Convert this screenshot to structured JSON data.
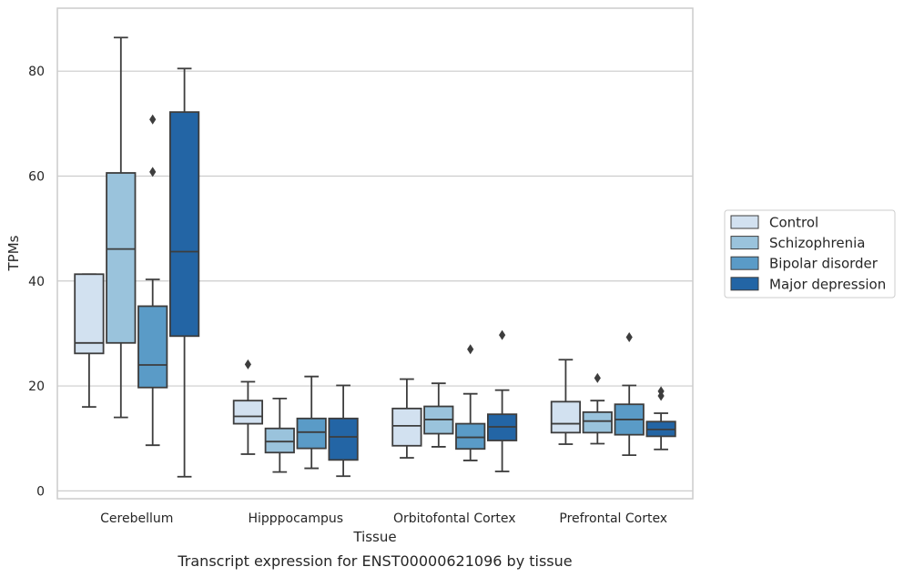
{
  "chart_data": {
    "type": "box",
    "title": "",
    "caption": "Transcript expression for ENST00000621096 by tissue",
    "xlabel": "Tissue",
    "ylabel": "TPMs",
    "ylim": [
      -1.5,
      92
    ],
    "yticks": [
      0,
      20,
      40,
      60,
      80
    ],
    "grid": "horizontal",
    "legend_position": "right",
    "categories": [
      "Cerebellum",
      "Hipppocampus",
      "Orbitofontal Cortex",
      "Prefrontal Cortex"
    ],
    "series": [
      {
        "name": "Control",
        "color": "#d2e1f0",
        "boxes": [
          {
            "min": 16,
            "q1": 26.2,
            "median": 28.2,
            "q3": 41.3,
            "max": 41.3,
            "outliers": []
          },
          {
            "min": 7,
            "q1": 12.8,
            "median": 14.2,
            "q3": 17.2,
            "max": 20.8,
            "outliers": [
              24.1
            ]
          },
          {
            "min": 6.3,
            "q1": 8.6,
            "median": 12.4,
            "q3": 15.7,
            "max": 21.3,
            "outliers": []
          },
          {
            "min": 8.9,
            "q1": 11.1,
            "median": 12.8,
            "q3": 17,
            "max": 25,
            "outliers": []
          }
        ]
      },
      {
        "name": "Schizophrenia",
        "color": "#9ac3dc",
        "boxes": [
          {
            "min": 14,
            "q1": 28.2,
            "median": 46.1,
            "q3": 60.6,
            "max": 86.4,
            "outliers": []
          },
          {
            "min": 3.6,
            "q1": 7.3,
            "median": 9.4,
            "q3": 11.9,
            "max": 17.6,
            "outliers": []
          },
          {
            "min": 8.4,
            "q1": 10.9,
            "median": 13.6,
            "q3": 16.1,
            "max": 20.5,
            "outliers": []
          },
          {
            "min": 9,
            "q1": 11.1,
            "median": 13.3,
            "q3": 15,
            "max": 17.2,
            "outliers": [
              21.5
            ]
          }
        ]
      },
      {
        "name": "Bipolar disorder",
        "color": "#5a9bc7",
        "boxes": [
          {
            "min": 8.7,
            "q1": 19.7,
            "median": 24,
            "q3": 35.2,
            "max": 40.3,
            "outliers": [
              60.8,
              70.8
            ]
          },
          {
            "min": 4.3,
            "q1": 8.1,
            "median": 11.2,
            "q3": 13.8,
            "max": 21.8,
            "outliers": []
          },
          {
            "min": 5.8,
            "q1": 8,
            "median": 10.2,
            "q3": 12.8,
            "max": 18.5,
            "outliers": [
              27
            ]
          },
          {
            "min": 6.8,
            "q1": 10.7,
            "median": 13.6,
            "q3": 16.5,
            "max": 20.1,
            "outliers": [
              29.3
            ]
          }
        ]
      },
      {
        "name": "Major depression",
        "color": "#2365a5",
        "boxes": [
          {
            "min": 2.7,
            "q1": 29.5,
            "median": 45.6,
            "q3": 72.2,
            "max": 80.5,
            "outliers": []
          },
          {
            "min": 2.8,
            "q1": 5.9,
            "median": 10.3,
            "q3": 13.8,
            "max": 20.1,
            "outliers": []
          },
          {
            "min": 3.7,
            "q1": 9.6,
            "median": 12.2,
            "q3": 14.6,
            "max": 19.2,
            "outliers": [
              29.7
            ]
          },
          {
            "min": 7.9,
            "q1": 10.4,
            "median": 11.7,
            "q3": 13.2,
            "max": 14.8,
            "outliers": [
              18.1,
              19
            ]
          }
        ]
      }
    ]
  }
}
